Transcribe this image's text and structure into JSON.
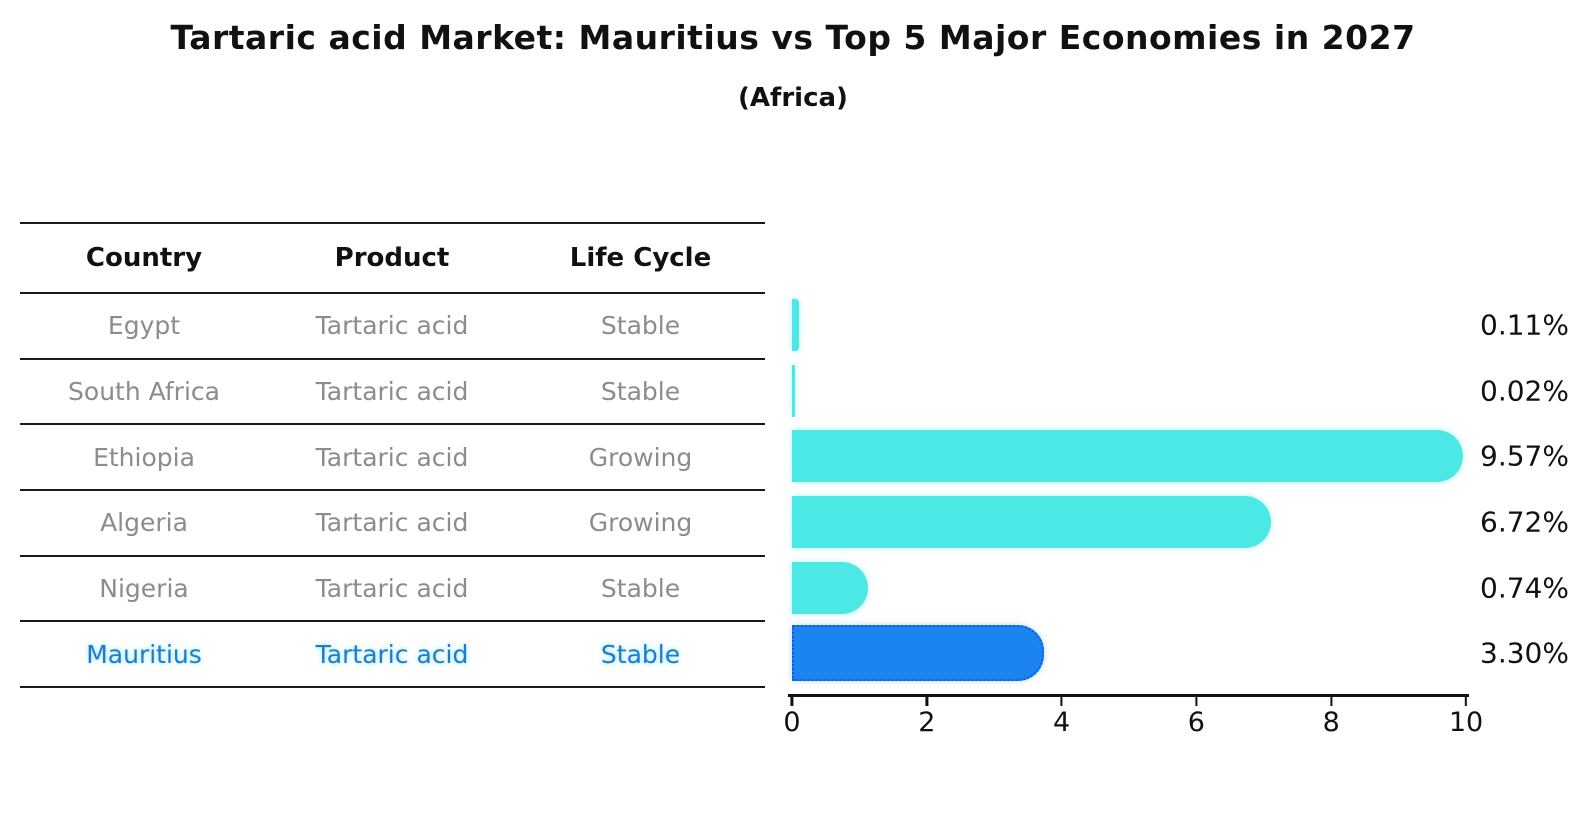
{
  "header": {
    "title": "Tartaric acid Market: Mauritius vs Top 5 Major Economies in 2027",
    "subtitle": "(Africa)"
  },
  "table": {
    "columns": [
      "Country",
      "Product",
      "Life Cycle"
    ],
    "rows": [
      {
        "country": "Egypt",
        "product": "Tartaric acid",
        "life_cycle": "Stable",
        "highlight": false
      },
      {
        "country": "South Africa",
        "product": "Tartaric acid",
        "life_cycle": "Stable",
        "highlight": false
      },
      {
        "country": "Ethiopia",
        "product": "Tartaric acid",
        "life_cycle": "Growing",
        "highlight": false
      },
      {
        "country": "Algeria",
        "product": "Tartaric acid",
        "life_cycle": "Growing",
        "highlight": false
      },
      {
        "country": "Nigeria",
        "product": "Tartaric acid",
        "life_cycle": "Stable",
        "highlight": false
      },
      {
        "country": "Mauritius",
        "product": "Tartaric acid",
        "life_cycle": "Stable",
        "highlight": true
      }
    ]
  },
  "chart_data": {
    "type": "bar",
    "orientation": "horizontal",
    "title": "Tartaric acid Market: Mauritius vs Top 5 Major Economies in 2027",
    "subtitle": "(Africa)",
    "categories": [
      "Egypt",
      "South Africa",
      "Ethiopia",
      "Algeria",
      "Nigeria",
      "Mauritius"
    ],
    "values": [
      0.11,
      0.02,
      9.57,
      6.72,
      0.74,
      3.3
    ],
    "value_labels": [
      "0.11%",
      "0.02%",
      "9.57%",
      "6.72%",
      "0.74%",
      "3.30%"
    ],
    "xlabel": "",
    "ylabel": "",
    "xlim": [
      0,
      10
    ],
    "xticks": [
      0,
      2,
      4,
      6,
      8,
      10
    ],
    "grid": false,
    "legend": false,
    "bar_color": "#4CE8E5",
    "highlight_index": 5,
    "highlight_color": "#1B84F0",
    "highlight_border_color": "#0d5ed2"
  }
}
